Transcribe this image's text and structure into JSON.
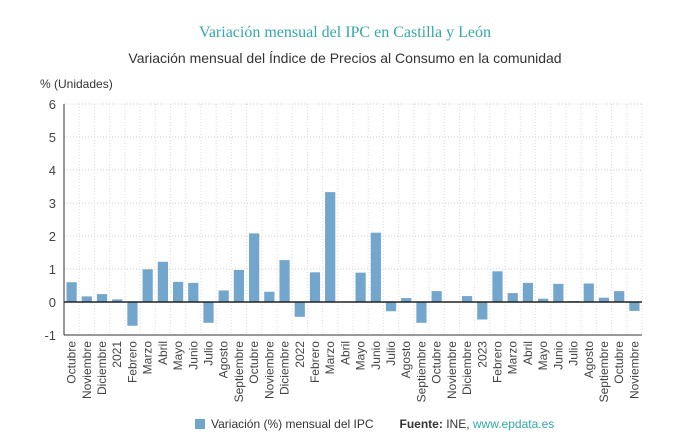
{
  "chart_data": {
    "type": "bar",
    "title": "Variación mensual del IPC en Castilla y León",
    "subtitle": "Variación mensual del Índice de Precios al Consumo en la comunidad",
    "ylabel": "% (Unidades)",
    "ylim": [
      -1,
      6
    ],
    "yticks": [
      -1,
      0,
      1,
      2,
      3,
      4,
      5,
      6
    ],
    "grid": true,
    "legend_position": "bottom",
    "categories": [
      "Octubre",
      "Noviembre",
      "Diciembre",
      "2021",
      "Febrero",
      "Marzo",
      "Abril",
      "Mayo",
      "Junio",
      "Julio",
      "Agosto",
      "Septiembre",
      "Octubre",
      "Noviembre",
      "Diciembre",
      "2022",
      "Febrero",
      "Marzo",
      "Abril",
      "Mayo",
      "Junio",
      "Julio",
      "Agosto",
      "Septiembre",
      "Octubre",
      "Noviembre",
      "Diciembre",
      "2023",
      "Febrero",
      "Marzo",
      "Abril",
      "Mayo",
      "Junio",
      "Julio",
      "Agosto",
      "Septiembre",
      "Octubre",
      "Noviembre"
    ],
    "series": [
      {
        "name": "Variación (%) mensual del IPC",
        "color": "#73a6cc",
        "values": [
          0.6,
          0.17,
          0.24,
          0.08,
          -0.72,
          0.99,
          1.22,
          0.61,
          0.58,
          -0.63,
          0.35,
          0.97,
          2.08,
          0.31,
          1.27,
          -0.45,
          0.9,
          3.33,
          0.0,
          0.89,
          2.1,
          -0.28,
          0.12,
          -0.63,
          0.33,
          0.0,
          0.18,
          -0.53,
          0.93,
          0.27,
          0.58,
          0.1,
          0.55,
          0.03,
          0.56,
          0.13,
          0.33,
          -0.27
        ]
      }
    ]
  },
  "source": {
    "label": "Fuente:",
    "text": "INE,",
    "link": "www.epdata.es"
  }
}
